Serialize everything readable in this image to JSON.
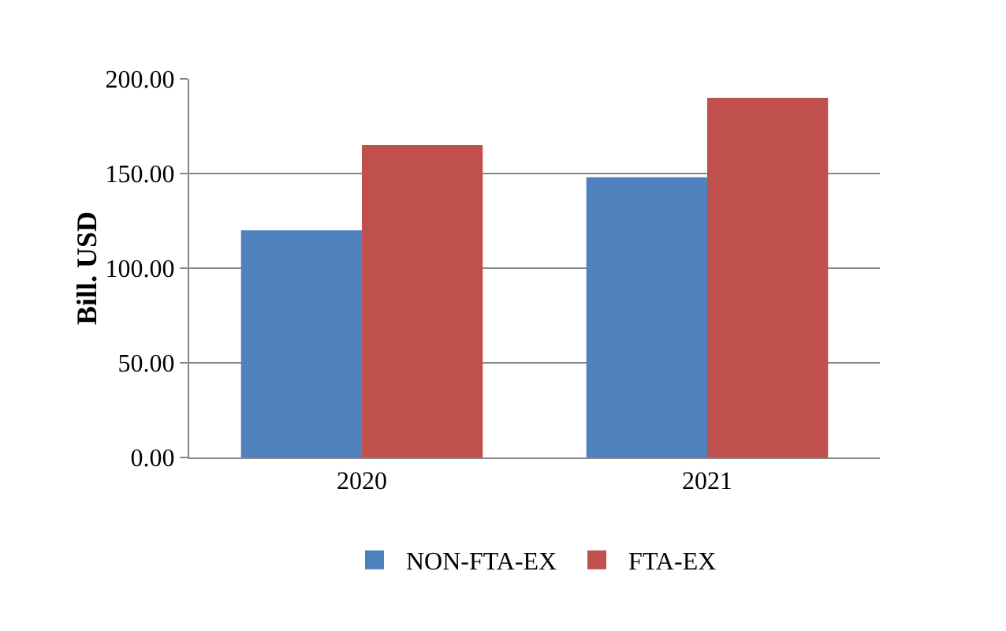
{
  "chart_data": {
    "type": "bar",
    "categories": [
      "2020",
      "2021"
    ],
    "ylabel": "Bill. USD",
    "series": [
      {
        "name": "NON-FTA-EX",
        "color": "#4f81bd",
        "values": [
          120,
          148
        ]
      },
      {
        "name": "FTA-EX",
        "color": "#c0504d",
        "values": [
          165,
          190
        ]
      }
    ],
    "ylim": [
      0,
      200
    ],
    "yticks": [
      {
        "value": 0,
        "label": "0.00"
      },
      {
        "value": 50,
        "label": "50.00"
      },
      {
        "value": 100,
        "label": "100.00"
      },
      {
        "value": 150,
        "label": "150.00"
      },
      {
        "value": 200,
        "label": "200.00"
      }
    ],
    "grid": "y",
    "legend": "bottom"
  }
}
